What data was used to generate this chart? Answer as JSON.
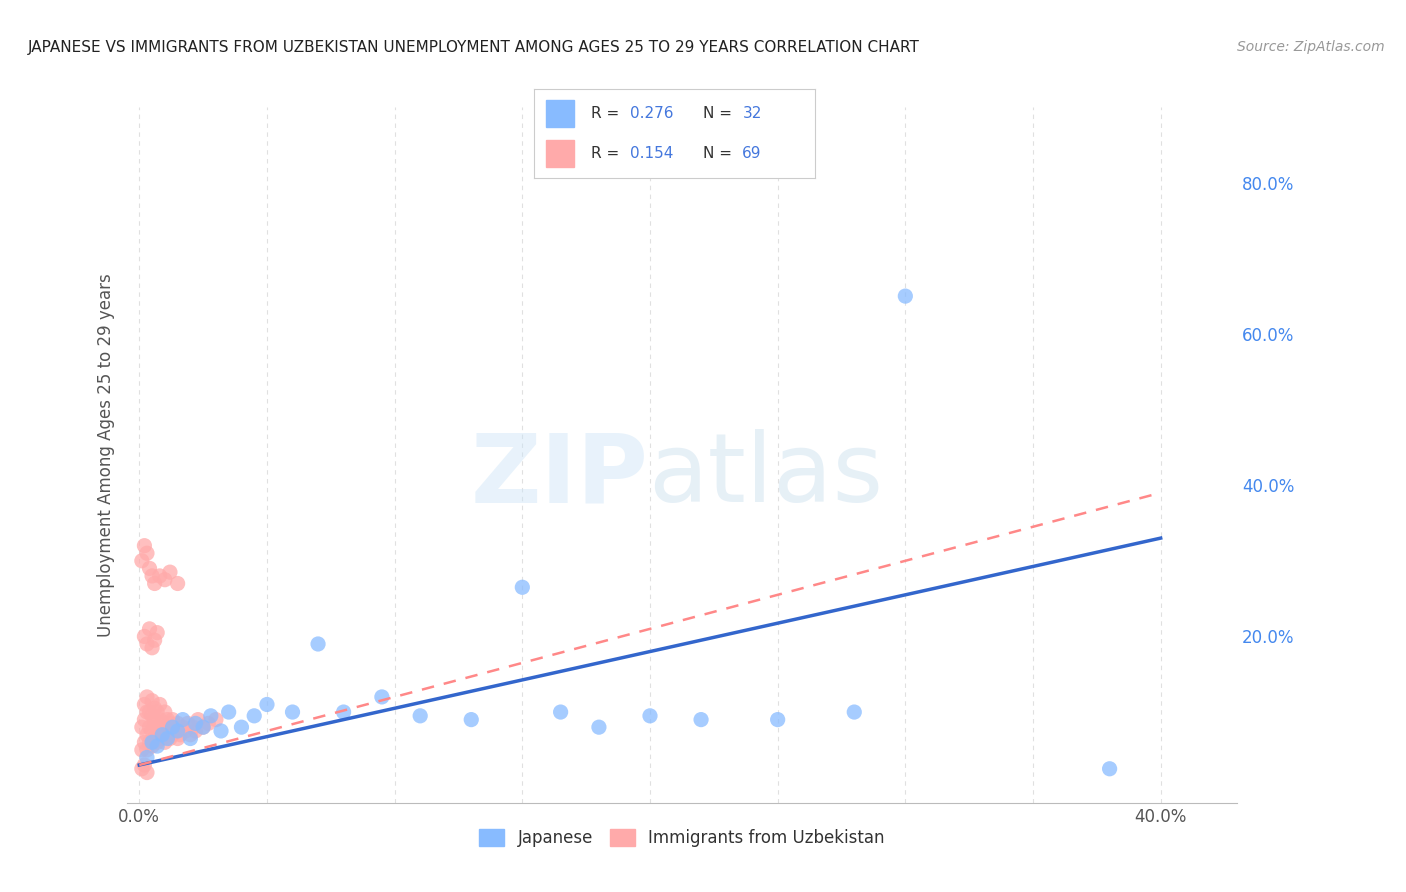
{
  "title": "JAPANESE VS IMMIGRANTS FROM UZBEKISTAN UNEMPLOYMENT AMONG AGES 25 TO 29 YEARS CORRELATION CHART",
  "source": "Source: ZipAtlas.com",
  "ylabel": "Unemployment Among Ages 25 to 29 years",
  "xlim": [
    -0.005,
    0.43
  ],
  "ylim": [
    -0.02,
    0.9
  ],
  "background_color": "#ffffff",
  "grid_color": "#e0e0e0",
  "japanese_color": "#88bbff",
  "uzbekistan_color": "#ffaaaa",
  "japanese_line_color": "#3366cc",
  "uzbekistan_line_color": "#ffaaaa",
  "R_japanese": "0.276",
  "N_japanese": "32",
  "R_uzbekistan": "0.154",
  "N_uzbekistan": "69",
  "legend_label_japanese": "Japanese",
  "legend_label_uzbekistan": "Immigrants from Uzbekistan",
  "jp_trend_x0": 0.0,
  "jp_trend_y0": 0.03,
  "jp_trend_x1": 0.4,
  "jp_trend_y1": 0.33,
  "uz_trend_x0": 0.0,
  "uz_trend_y0": 0.03,
  "uz_trend_x1": 0.4,
  "uz_trend_y1": 0.39,
  "japanese_x": [
    0.003,
    0.005,
    0.007,
    0.009,
    0.011,
    0.013,
    0.015,
    0.017,
    0.02,
    0.022,
    0.025,
    0.028,
    0.032,
    0.035,
    0.04,
    0.045,
    0.05,
    0.06,
    0.07,
    0.08,
    0.095,
    0.11,
    0.13,
    0.15,
    0.165,
    0.18,
    0.2,
    0.22,
    0.25,
    0.28,
    0.3,
    0.38
  ],
  "japanese_y": [
    0.04,
    0.06,
    0.055,
    0.07,
    0.065,
    0.08,
    0.075,
    0.09,
    0.065,
    0.085,
    0.08,
    0.095,
    0.075,
    0.1,
    0.08,
    0.095,
    0.11,
    0.1,
    0.19,
    0.1,
    0.12,
    0.095,
    0.09,
    0.265,
    0.1,
    0.08,
    0.095,
    0.09,
    0.09,
    0.1,
    0.65,
    0.025
  ],
  "uzbekistan_x": [
    0.001,
    0.001,
    0.002,
    0.002,
    0.002,
    0.003,
    0.003,
    0.003,
    0.003,
    0.004,
    0.004,
    0.004,
    0.005,
    0.005,
    0.005,
    0.005,
    0.006,
    0.006,
    0.006,
    0.007,
    0.007,
    0.007,
    0.008,
    0.008,
    0.008,
    0.009,
    0.009,
    0.01,
    0.01,
    0.01,
    0.011,
    0.011,
    0.012,
    0.012,
    0.013,
    0.013,
    0.014,
    0.015,
    0.015,
    0.016,
    0.017,
    0.018,
    0.019,
    0.02,
    0.021,
    0.022,
    0.023,
    0.025,
    0.027,
    0.03,
    0.002,
    0.003,
    0.004,
    0.005,
    0.006,
    0.007,
    0.001,
    0.002,
    0.003,
    0.004,
    0.005,
    0.006,
    0.008,
    0.01,
    0.012,
    0.015,
    0.001,
    0.002,
    0.003
  ],
  "uzbekistan_y": [
    0.05,
    0.08,
    0.06,
    0.09,
    0.11,
    0.05,
    0.07,
    0.1,
    0.12,
    0.06,
    0.08,
    0.1,
    0.055,
    0.075,
    0.095,
    0.115,
    0.065,
    0.085,
    0.105,
    0.06,
    0.08,
    0.1,
    0.07,
    0.09,
    0.11,
    0.065,
    0.085,
    0.06,
    0.08,
    0.1,
    0.07,
    0.09,
    0.065,
    0.085,
    0.07,
    0.09,
    0.075,
    0.065,
    0.085,
    0.07,
    0.08,
    0.075,
    0.085,
    0.07,
    0.08,
    0.075,
    0.09,
    0.08,
    0.085,
    0.09,
    0.2,
    0.19,
    0.21,
    0.185,
    0.195,
    0.205,
    0.3,
    0.32,
    0.31,
    0.29,
    0.28,
    0.27,
    0.28,
    0.275,
    0.285,
    0.27,
    0.025,
    0.03,
    0.02
  ]
}
